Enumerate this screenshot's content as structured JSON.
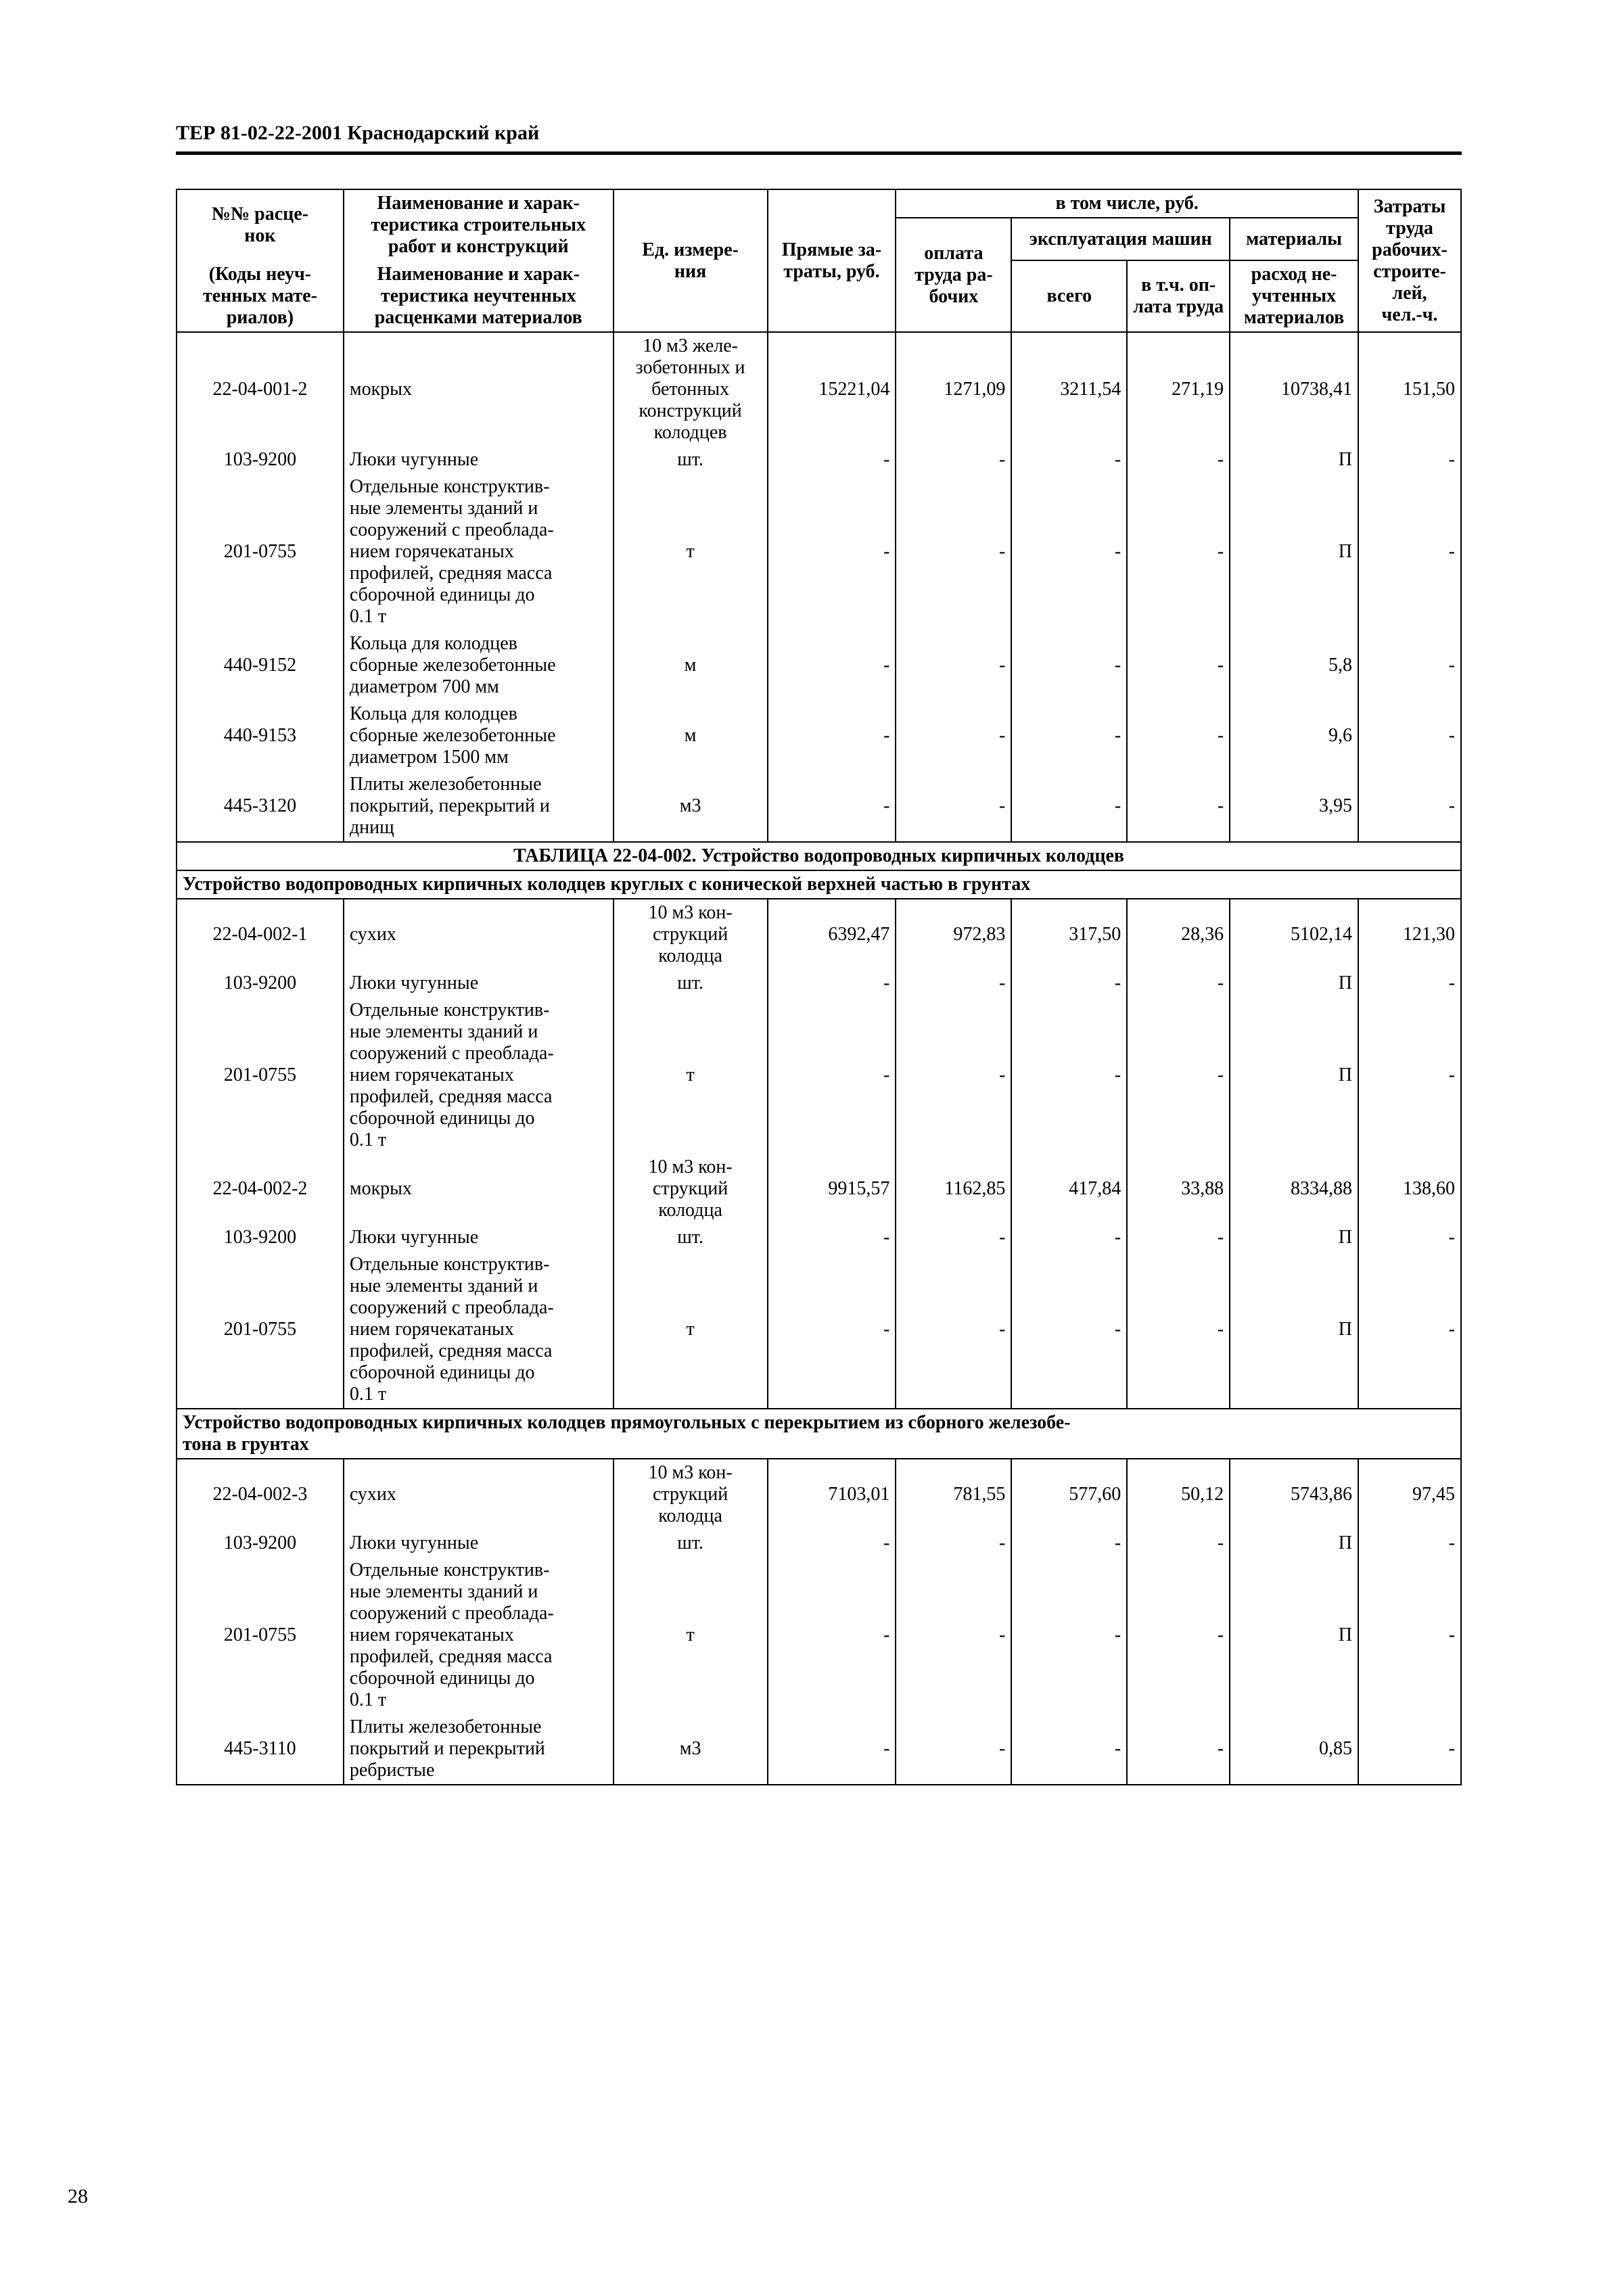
{
  "doc_header": "ТЕР 81-02-22-2001   Краснодарский край",
  "page_number": "28",
  "headers": {
    "h_code_top": "№№ расце-\nнок",
    "h_code_bot": "(Коды неуч-\nтенных мате-\nриалов)",
    "h_name_top": "Наименование и харак-\nтеристика строительных\nработ и конструкций",
    "h_name_bot": "Наименование и харак-\nтеристика неучтенных\nрасценками материалов",
    "h_unit": "Ед. измере-\nния",
    "h_direct": "Прямые за-\nтраты, руб.",
    "h_incl": "в том числе, руб.",
    "h_wage": "оплата\nтруда ра-\nбочих",
    "h_mach_group": "эксплуатация машин",
    "h_mach_total": "всего",
    "h_mach_wage": "в т.ч. оп-\nлата труда",
    "h_mat_group": "материалы",
    "h_mat": "расход не-\nучтенных\nматериалов",
    "h_labour": "Затраты\nтруда\nрабочих-\nстроите-\nлей,\nчел.-ч."
  },
  "rows": [
    {
      "type": "data",
      "code": "22-04-001-2",
      "name": "мокрых",
      "unit": "10 м3 желе-\nзобетонных и\nбетонных\nконструкций\nколодцев",
      "direct": "15221,04",
      "wage": "1271,09",
      "mach": "3211,54",
      "machw": "271,19",
      "mat": "10738,41",
      "lab": "151,50"
    },
    {
      "type": "data",
      "code": "103-9200",
      "name": "Люки чугунные",
      "unit": "шт.",
      "direct": "-",
      "wage": "-",
      "mach": "-",
      "machw": "-",
      "mat": "П",
      "lab": "-"
    },
    {
      "type": "data",
      "code": "201-0755",
      "name": "Отдельные конструктив-\nные элементы зданий и\nсооружений с преоблада-\nнием горячекатаных\nпрофилей, средняя масса\nсборочной единицы до\n0.1 т",
      "unit": "т",
      "direct": "-",
      "wage": "-",
      "mach": "-",
      "machw": "-",
      "mat": "П",
      "lab": "-"
    },
    {
      "type": "data",
      "code": "440-9152",
      "name": "Кольца для колодцев\nсборные железобетонные\nдиаметром 700 мм",
      "unit": "м",
      "direct": "-",
      "wage": "-",
      "mach": "-",
      "machw": "-",
      "mat": "5,8",
      "lab": "-"
    },
    {
      "type": "data",
      "code": "440-9153",
      "name": "Кольца для колодцев\nсборные железобетонные\nдиаметром 1500 мм",
      "unit": "м",
      "direct": "-",
      "wage": "-",
      "mach": "-",
      "machw": "-",
      "mat": "9,6",
      "lab": "-"
    },
    {
      "type": "data",
      "code": "445-3120",
      "name": "Плиты железобетонные\nпокрытий, перекрытий и\nднищ",
      "unit": "м3",
      "direct": "-",
      "wage": "-",
      "mach": "-",
      "machw": "-",
      "mat": "3,95",
      "lab": "-"
    },
    {
      "type": "section",
      "text": "ТАБЛИЦА 22-04-002. Устройство водопроводных кирпичных колодцев"
    },
    {
      "type": "subsection",
      "text": "Устройство водопроводных кирпичных колодцев круглых с конической верхней частью в грунтах"
    },
    {
      "type": "data",
      "code": "22-04-002-1",
      "name": "сухих",
      "unit": "10 м3 кон-\nструкций\nколодца",
      "direct": "6392,47",
      "wage": "972,83",
      "mach": "317,50",
      "machw": "28,36",
      "mat": "5102,14",
      "lab": "121,30"
    },
    {
      "type": "data",
      "code": "103-9200",
      "name": "Люки чугунные",
      "unit": "шт.",
      "direct": "-",
      "wage": "-",
      "mach": "-",
      "machw": "-",
      "mat": "П",
      "lab": "-"
    },
    {
      "type": "data",
      "code": "201-0755",
      "name": "Отдельные конструктив-\nные элементы зданий и\nсооружений с преоблада-\nнием горячекатаных\nпрофилей, средняя масса\nсборочной единицы до\n0.1 т",
      "unit": "т",
      "direct": "-",
      "wage": "-",
      "mach": "-",
      "machw": "-",
      "mat": "П",
      "lab": "-"
    },
    {
      "type": "data",
      "code": "22-04-002-2",
      "name": "мокрых",
      "unit": "10 м3 кон-\nструкций\nколодца",
      "direct": "9915,57",
      "wage": "1162,85",
      "mach": "417,84",
      "machw": "33,88",
      "mat": "8334,88",
      "lab": "138,60"
    },
    {
      "type": "data",
      "code": "103-9200",
      "name": "Люки чугунные",
      "unit": "шт.",
      "direct": "-",
      "wage": "-",
      "mach": "-",
      "machw": "-",
      "mat": "П",
      "lab": "-"
    },
    {
      "type": "data",
      "code": "201-0755",
      "name": "Отдельные конструктив-\nные элементы зданий и\nсооружений с преоблада-\nнием горячекатаных\nпрофилей, средняя масса\nсборочной единицы до\n0.1 т",
      "unit": "т",
      "direct": "-",
      "wage": "-",
      "mach": "-",
      "machw": "-",
      "mat": "П",
      "lab": "-"
    },
    {
      "type": "subsection",
      "text": "Устройство водопроводных кирпичных колодцев прямоугольных с перекрытием из сборного железобе-\nтона в грунтах"
    },
    {
      "type": "data",
      "code": "22-04-002-3",
      "name": "сухих",
      "unit": "10 м3 кон-\nструкций\nколодца",
      "direct": "7103,01",
      "wage": "781,55",
      "mach": "577,60",
      "machw": "50,12",
      "mat": "5743,86",
      "lab": "97,45"
    },
    {
      "type": "data",
      "code": "103-9200",
      "name": "Люки чугунные",
      "unit": "шт.",
      "direct": "-",
      "wage": "-",
      "mach": "-",
      "machw": "-",
      "mat": "П",
      "lab": "-"
    },
    {
      "type": "data",
      "code": "201-0755",
      "name": "Отдельные конструктив-\nные элементы зданий и\nсооружений с преоблада-\nнием горячекатаных\nпрофилей, средняя масса\nсборочной единицы до\n0.1 т",
      "unit": "т",
      "direct": "-",
      "wage": "-",
      "mach": "-",
      "machw": "-",
      "mat": "П",
      "lab": "-"
    },
    {
      "type": "data",
      "code": "445-3110",
      "name": "Плиты железобетонные\nпокрытий и перекрытий\nребристые",
      "unit": "м3",
      "direct": "-",
      "wage": "-",
      "mach": "-",
      "machw": "-",
      "mat": "0,85",
      "lab": "-"
    }
  ]
}
